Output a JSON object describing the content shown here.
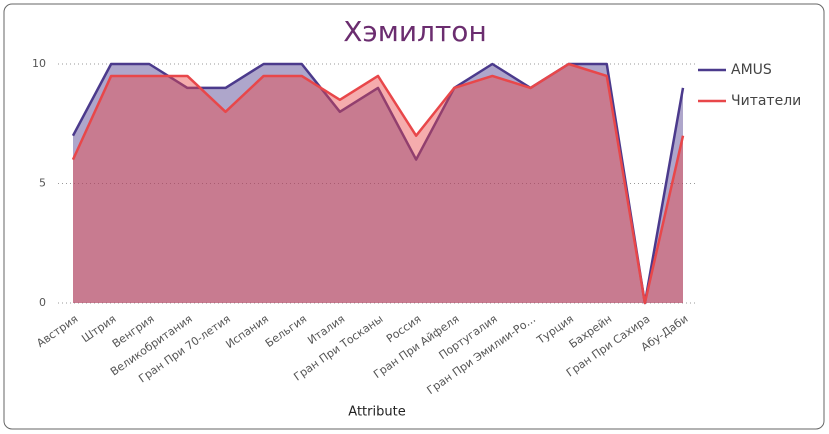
{
  "chart_data": {
    "type": "area",
    "title": "Хэмилтон",
    "x_label": "Attribute",
    "categories": [
      "Австрия",
      "Штрия",
      "Венгрия",
      "Великобритания",
      "Гран При 70-летия",
      "Испания",
      "Бельгия",
      "Италия",
      "Гран При Тосканы",
      "Россия",
      "Гран При Айфеля",
      "Португалия",
      "Гран При Эмилии-Ро...",
      "Турция",
      "Бахрейн",
      "Гран При Сахира",
      "Абу-Даби"
    ],
    "series": [
      {
        "name": "AMUS",
        "color": "#4b3a8c",
        "values": [
          7,
          10,
          10,
          9,
          9,
          10,
          10,
          8,
          9,
          6,
          9,
          10,
          9,
          10,
          10,
          0,
          9
        ]
      },
      {
        "name": "Читатели",
        "color": "#e8474a",
        "values": [
          6,
          9.5,
          9.5,
          9.5,
          8,
          9.5,
          9.5,
          8.5,
          9.5,
          7,
          9,
          9.5,
          9,
          10,
          9.5,
          0,
          7
        ]
      }
    ],
    "ylim": [
      0,
      10
    ],
    "yticks": [
      0,
      5,
      10
    ],
    "grid": true,
    "legend": "right"
  }
}
